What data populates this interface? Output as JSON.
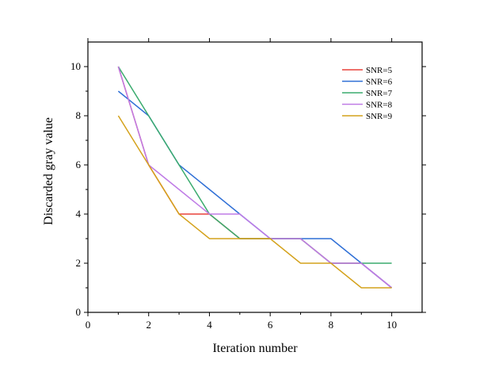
{
  "chart_data": {
    "type": "line",
    "xlabel": "Iteration number",
    "ylabel": "Discarded gray value",
    "xlim": [
      0,
      11
    ],
    "ylim": [
      0,
      11
    ],
    "xticks": [
      0,
      2,
      4,
      6,
      8,
      10
    ],
    "yticks": [
      0,
      2,
      4,
      6,
      8,
      10
    ],
    "grid": false,
    "legend_position": "top-right",
    "x": [
      1,
      2,
      3,
      4,
      5,
      6,
      7,
      8,
      9,
      10
    ],
    "series": [
      {
        "name": "SNR=5",
        "color": "#e8423a",
        "values": [
          10,
          6,
          4,
          4,
          3,
          3,
          3,
          2,
          2,
          1
        ]
      },
      {
        "name": "SNR=6",
        "color": "#2f6fd6",
        "values": [
          9,
          8,
          6,
          5,
          4,
          3,
          3,
          3,
          2,
          1
        ]
      },
      {
        "name": "SNR=7",
        "color": "#3aab6e",
        "values": [
          10,
          8,
          6,
          4,
          3,
          3,
          3,
          2,
          2,
          2
        ]
      },
      {
        "name": "SNR=8",
        "color": "#bf7be6",
        "values": [
          10,
          6,
          5,
          4,
          4,
          3,
          3,
          2,
          2,
          1
        ]
      },
      {
        "name": "SNR=9",
        "color": "#d4a21c",
        "values": [
          8,
          6,
          4,
          3,
          3,
          3,
          2,
          2,
          1,
          1
        ]
      }
    ]
  }
}
